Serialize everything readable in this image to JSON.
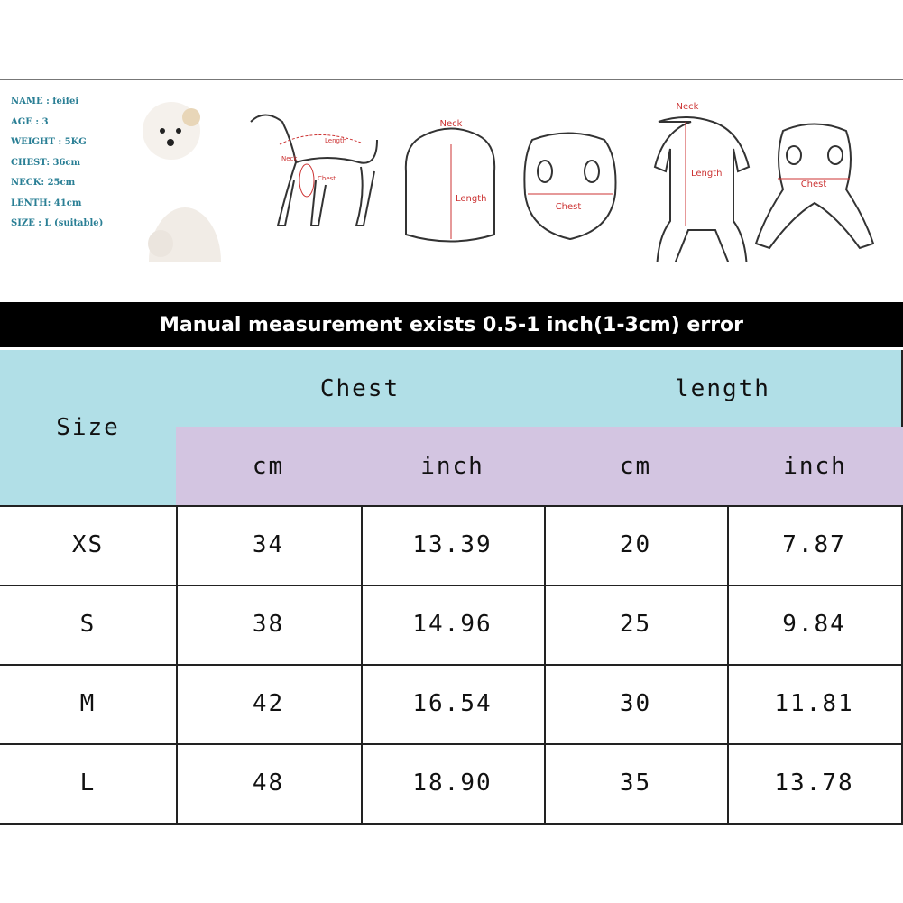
{
  "profile": [
    "NAME : feifei",
    "AGE : 3",
    "WEIGHT : 5KG",
    "CHEST: 36cm",
    "NECK: 25cm",
    "LENTH: 41cm",
    "SIZE : L (suitable)"
  ],
  "diagrams": [
    {
      "labels": [
        "Length",
        "Neck",
        "Chest"
      ]
    },
    {
      "labels": [
        "Neck",
        "Length"
      ]
    },
    {
      "labels": [
        "Chest"
      ]
    },
    {
      "labels": [
        "Neck",
        "Length"
      ]
    },
    {
      "labels": [
        "Chest"
      ]
    }
  ],
  "table": {
    "banner": "Manual measurement exists 0.5-1 inch(1-3cm) error",
    "header": {
      "size": "Size",
      "groups": [
        "Chest",
        "length"
      ],
      "units": [
        "cm",
        "inch",
        "cm",
        "inch"
      ]
    },
    "rows": [
      [
        "XS",
        "34",
        "13.39",
        "20",
        "7.87"
      ],
      [
        "S",
        "38",
        "14.96",
        "25",
        "9.84"
      ],
      [
        "M",
        "42",
        "16.54",
        "30",
        "11.81"
      ],
      [
        "L",
        "48",
        "18.90",
        "35",
        "13.78"
      ]
    ]
  }
}
